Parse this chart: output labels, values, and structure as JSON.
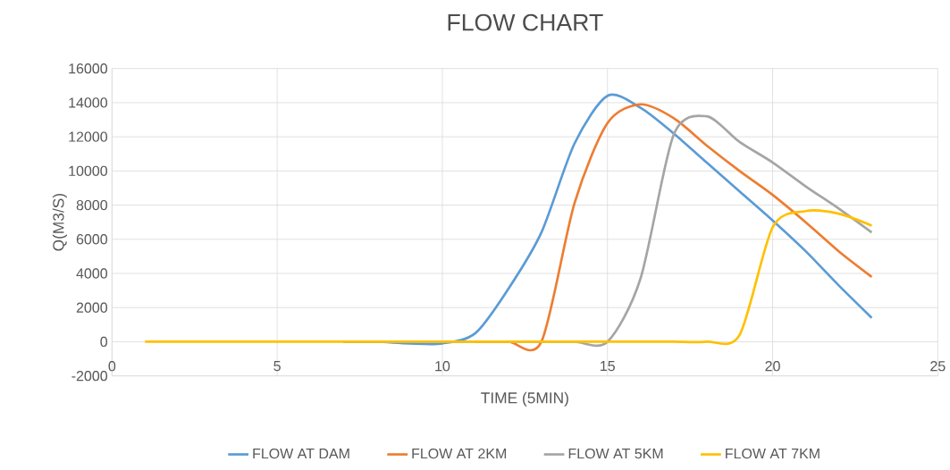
{
  "chart_data": {
    "type": "line",
    "title": "FLOW CHART",
    "xlabel": "TIME (5MIN)",
    "ylabel": "Q(M3/S)",
    "x": [
      1,
      2,
      3,
      4,
      5,
      6,
      7,
      8,
      9,
      10,
      11,
      12,
      13,
      14,
      15,
      16,
      17,
      18,
      19,
      20,
      21,
      22,
      23
    ],
    "series": [
      {
        "name": "FLOW AT DAM",
        "color": "#5b9bd5",
        "values": [
          null,
          null,
          null,
          null,
          null,
          null,
          0,
          0,
          -100,
          -100,
          500,
          3100,
          6400,
          11600,
          14400,
          13700,
          12200,
          10500,
          8800,
          7100,
          5300,
          3300,
          1400
        ]
      },
      {
        "name": "FLOW AT 2KM",
        "color": "#ed7d31",
        "values": [
          null,
          null,
          null,
          null,
          null,
          null,
          null,
          null,
          null,
          null,
          0,
          0,
          0,
          8100,
          12800,
          13900,
          13100,
          11500,
          10000,
          8600,
          7000,
          5300,
          3800
        ]
      },
      {
        "name": "FLOW AT 5KM",
        "color": "#a5a5a5",
        "values": [
          null,
          null,
          null,
          null,
          null,
          null,
          0,
          0,
          0,
          0,
          0,
          0,
          0,
          0,
          0,
          3700,
          12100,
          13200,
          11700,
          10500,
          9100,
          7800,
          6400
        ]
      },
      {
        "name": "FLOW AT 7KM",
        "color": "#ffc000",
        "values": [
          0,
          0,
          0,
          0,
          0,
          0,
          0,
          0,
          0,
          0,
          0,
          0,
          0,
          0,
          0,
          0,
          0,
          0,
          400,
          6700,
          7650,
          7500,
          6800
        ]
      }
    ],
    "xlim": [
      0,
      25
    ],
    "xticks": [
      0,
      5,
      10,
      15,
      20,
      25
    ],
    "ylim": [
      -2000,
      16000
    ],
    "yticks": [
      -2000,
      0,
      2000,
      4000,
      6000,
      8000,
      10000,
      12000,
      14000,
      16000
    ],
    "grid": true,
    "legend": "bottom",
    "marker": "none",
    "line_style": "solid"
  }
}
